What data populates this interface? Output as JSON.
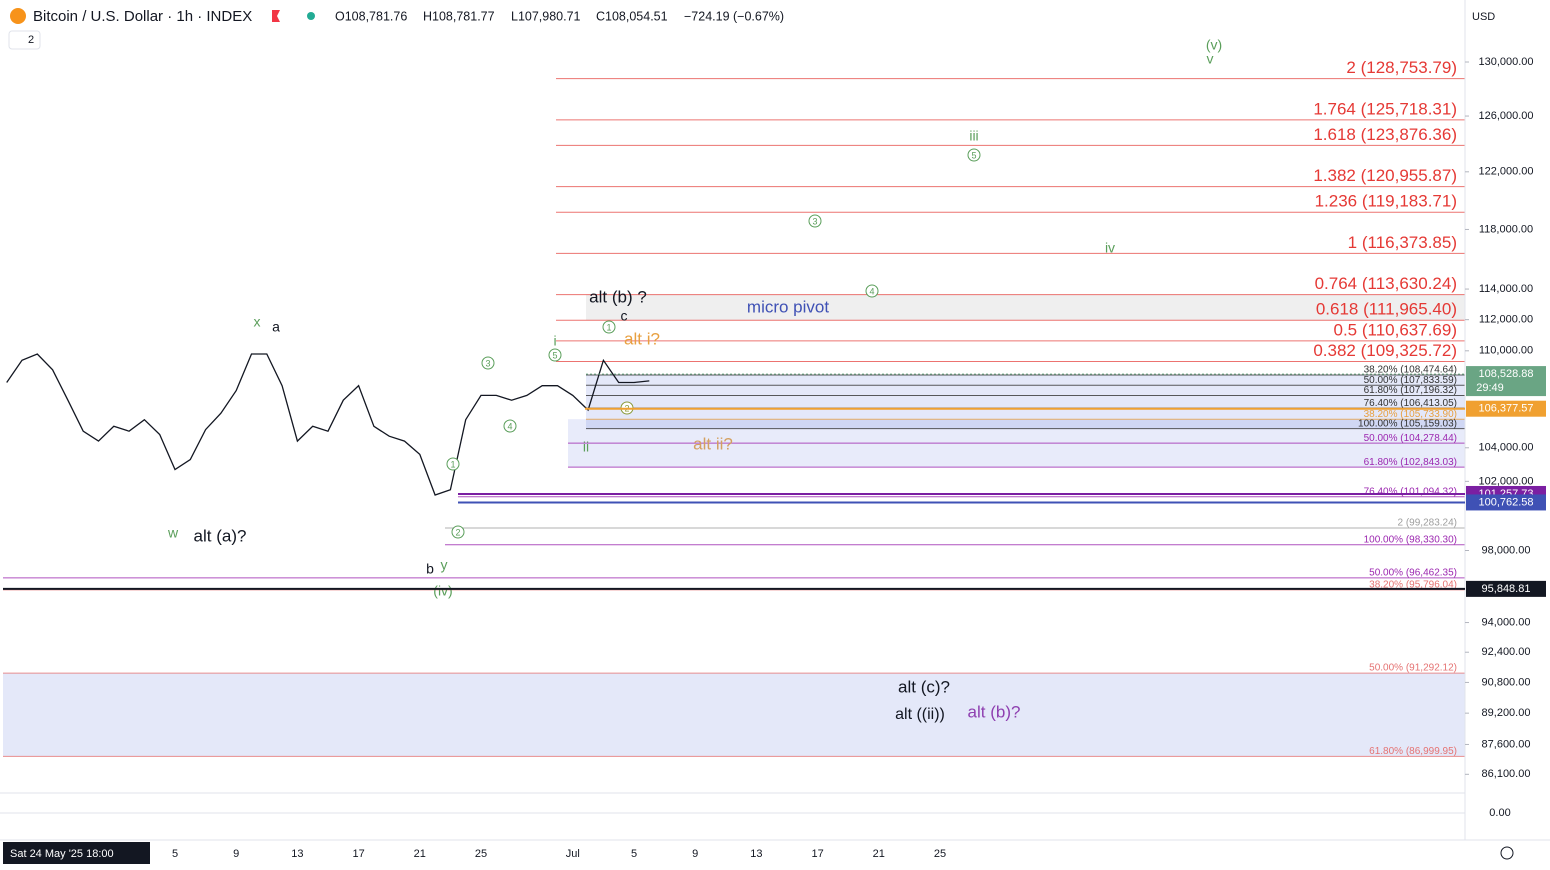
{
  "header": {
    "symbol": "Bitcoin / U.S. Dollar · 1h · INDEX",
    "open": "O108,781.76",
    "high": "H108,781.77",
    "low": "L107,980.71",
    "close": "C108,054.51",
    "change": "−724.19 (−0.67%)",
    "indicators": "2",
    "currency": "USD"
  },
  "chart_data": {
    "type": "line",
    "log_scale": true,
    "grid": false,
    "color": "#131722",
    "x_start_label": "Sat 24 May '25 18:00",
    "categories": [
      null,
      null,
      null,
      null,
      null,
      null,
      null,
      null,
      null,
      null,
      null,
      "5",
      null,
      null,
      null,
      "9",
      null,
      null,
      null,
      "13",
      null,
      null,
      null,
      "17",
      null,
      null,
      null,
      "21",
      null,
      null,
      null,
      "25",
      null,
      null,
      null,
      null,
      null,
      "Jul",
      null,
      null,
      null,
      "5",
      null,
      null,
      null,
      "9",
      null,
      null,
      null,
      "13",
      null,
      null,
      null,
      "17",
      null,
      null,
      null,
      "21",
      null,
      null,
      null,
      "25",
      null,
      null
    ],
    "values": [
      108000,
      109400,
      109800,
      108800,
      106900,
      105000,
      104400,
      105300,
      105000,
      105700,
      104800,
      102700,
      103300,
      105100,
      106100,
      107500,
      109800,
      109800,
      107800,
      104400,
      105300,
      105000,
      106900,
      107800,
      105300,
      104700,
      104400,
      103600,
      101200,
      101500,
      105700,
      107200,
      107200,
      106900,
      107200,
      107800,
      107800,
      107200,
      106300,
      109400,
      108000,
      108000,
      108100,
      null,
      null,
      null,
      null,
      null,
      null,
      null,
      null,
      null,
      null,
      null,
      null,
      null,
      null,
      null,
      null,
      null,
      null,
      null,
      null,
      null
    ],
    "ylim": [
      85322,
      134748
    ],
    "yticks": [
      {
        "value": 130000,
        "label": "130,000.00"
      },
      {
        "value": 126000,
        "label": "126,000.00"
      },
      {
        "value": 122000,
        "label": "122,000.00"
      },
      {
        "value": 118000,
        "label": "118,000.00"
      },
      {
        "value": 114000,
        "label": "114,000.00"
      },
      {
        "value": 112000,
        "label": "112,000.00"
      },
      {
        "value": 110000,
        "label": "110,000.00"
      },
      {
        "value": 104000,
        "label": "104,000.00"
      },
      {
        "value": 102000,
        "label": "102,000.00"
      },
      {
        "value": 98000,
        "label": "98,000.00"
      },
      {
        "value": 94000,
        "label": "94,000.00"
      },
      {
        "value": 92400,
        "label": "92,400.00"
      },
      {
        "value": 90800,
        "label": "90,800.00"
      },
      {
        "value": 89200,
        "label": "89,200.00"
      },
      {
        "value": 87600,
        "label": "87,600.00"
      },
      {
        "value": 86100,
        "label": "86,100.00"
      }
    ]
  },
  "levels": [
    {
      "label": "2 (128,753.79)",
      "price": 128753.79,
      "color": "#e53935"
    },
    {
      "label": "1.764 (125,718.31)",
      "price": 125718.31,
      "color": "#e53935"
    },
    {
      "label": "1.618 (123,876.36)",
      "price": 123876.36,
      "color": "#e53935"
    },
    {
      "label": "1.382 (120,955.87)",
      "price": 120955.87,
      "color": "#e53935"
    },
    {
      "label": "1.236 (119,183.71)",
      "price": 119183.71,
      "color": "#e53935"
    },
    {
      "label": "1 (116,373.85)",
      "price": 116373.85,
      "color": "#e53935"
    },
    {
      "label": "0.764 (113,630.24)",
      "price": 113630.24,
      "color": "#e53935"
    },
    {
      "label": "0.618 (111,965.40)",
      "price": 111965.4,
      "color": "#e53935"
    },
    {
      "label": "0.5 (110,637.69)",
      "price": 110637.69,
      "color": "#e53935"
    },
    {
      "label": "0.382 (109,325.72)",
      "price": 109325.72,
      "color": "#e53935"
    },
    {
      "label": "38.20% (108,474.64)",
      "price": 108474.64,
      "color": "#333333"
    },
    {
      "label": "50.00% (107,833.59)",
      "price": 107833.59,
      "color": "#333333"
    },
    {
      "label": "61.80% (107,196.32)",
      "price": 107196.32,
      "color": "#333333"
    },
    {
      "label": "76.40% (106,413.05)",
      "price": 106413.05,
      "color": "#333333"
    },
    {
      "label": "38.20% (105,733.90)",
      "price": 105733.9,
      "color": "#e8a040"
    },
    {
      "label": "100.00% (105,159.03)",
      "price": 105159.03,
      "color": "#333333"
    },
    {
      "label": "50.00% (104,278.44)",
      "price": 104278.44,
      "color": "#9c27b0"
    },
    {
      "label": "61.80% (102,843.03)",
      "price": 102843.03,
      "color": "#9c27b0"
    },
    {
      "label": "76.40% (101,094.32)",
      "price": 101094.32,
      "color": "#9c27b0"
    },
    {
      "label": "2 (99,283.24)",
      "price": 99283.24,
      "color": "#9e9e9e"
    },
    {
      "label": "100.00% (98,330.30)",
      "price": 98330.3,
      "color": "#9c27b0"
    },
    {
      "label": "50.00% (96,462.35)",
      "price": 96462.35,
      "color": "#9c27b0"
    },
    {
      "label": "38.20% (95,796.04)",
      "price": 95796.04,
      "color": "#e57373"
    },
    {
      "label": "50.00% (91,292.12)",
      "price": 91292.12,
      "color": "#e57373"
    },
    {
      "label": "61.80% (86,999.95)",
      "price": 86999.95,
      "color": "#e57373"
    }
  ],
  "price_tags": [
    {
      "label": "108,528.88",
      "price": 108528.88,
      "color": "#6aa584",
      "countdown": "29:49"
    },
    {
      "label": "106,377.57",
      "price": 106377.57,
      "color": "#f0a030"
    },
    {
      "label": "101,257.73",
      "price": 101257.73,
      "color": "#7b1fa2"
    },
    {
      "label": "100,762.58",
      "price": 100762.58,
      "color": "#3f51b5"
    },
    {
      "label": "95,848.81",
      "price": 95848.81,
      "color": "#131722"
    }
  ],
  "annotations": [
    "x",
    "a",
    "w",
    "alt (a)?",
    "b",
    "y",
    "(iv)",
    "1",
    "2",
    "3",
    "4",
    "5",
    "i",
    "ii",
    "alt (b) ?",
    "c",
    "1",
    "micro pivot",
    "alt i?",
    "2",
    "alt ii?",
    "iii",
    "5",
    "3",
    "4",
    "iv",
    "(v)",
    "v",
    "alt (c)?",
    "alt ((ii))",
    "alt (b)?"
  ],
  "oscillator": {
    "yticks": [
      {
        "value": 0,
        "label": "0.00"
      }
    ]
  }
}
